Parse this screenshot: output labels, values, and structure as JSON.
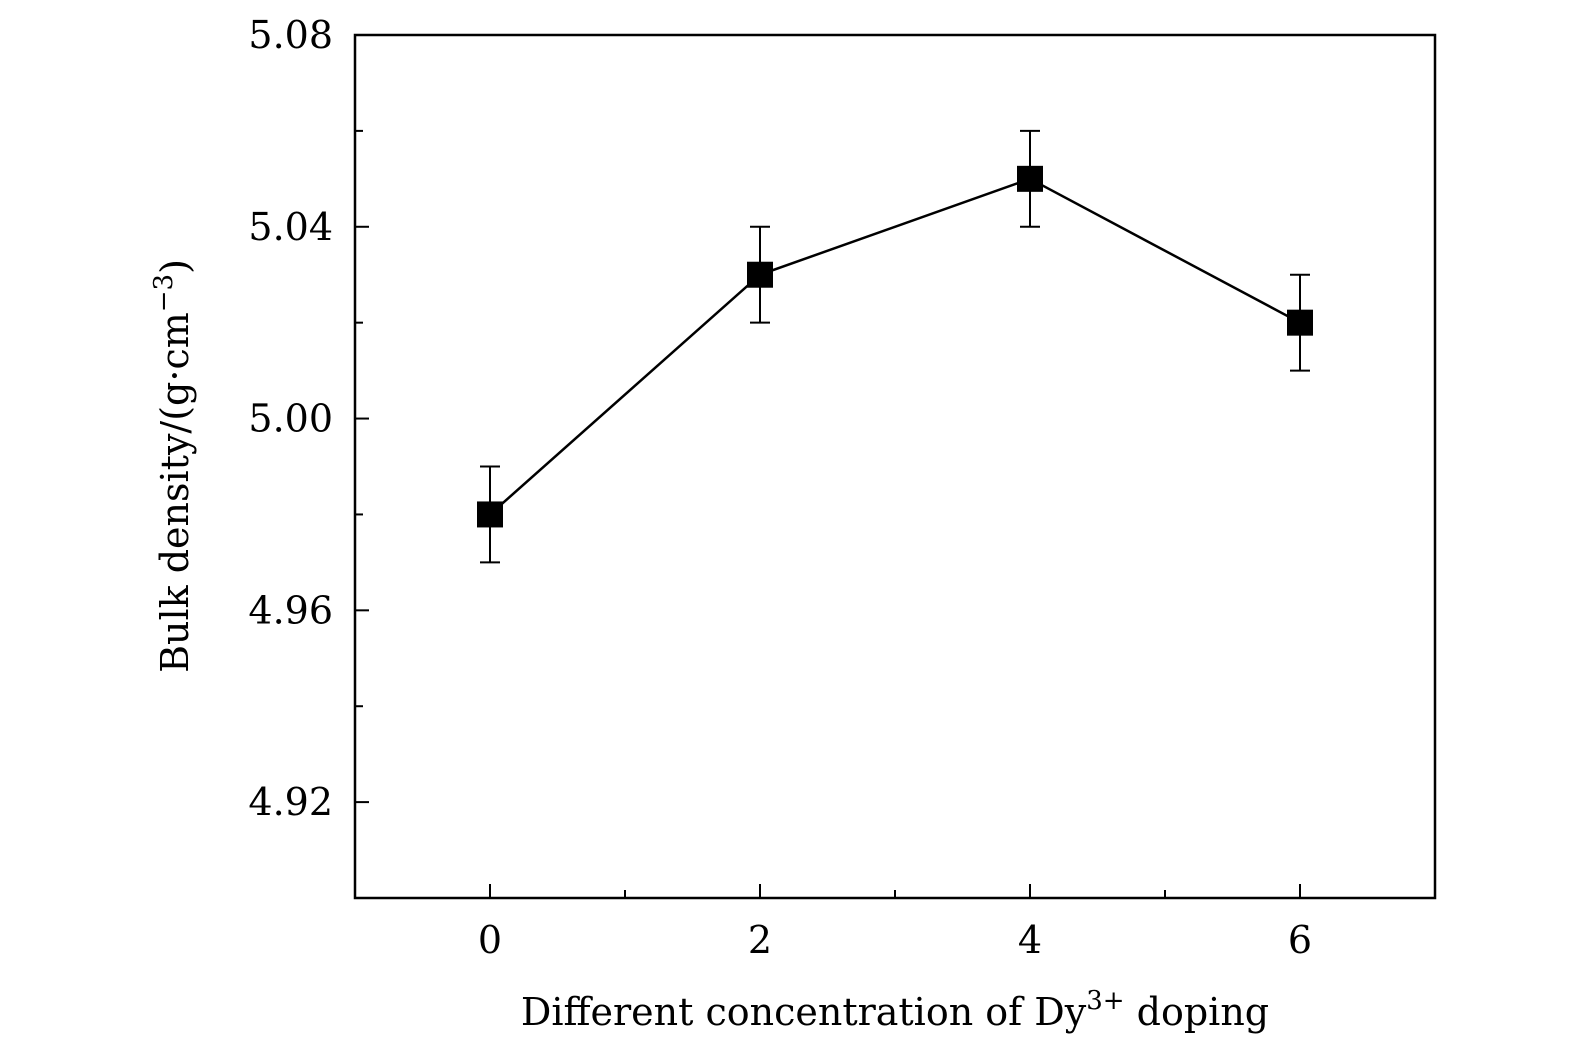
{
  "chart_data": {
    "type": "line",
    "title": "",
    "xlabel": {
      "text": "Different concentration of Dy",
      "sup": "3+",
      "suffix": " doping"
    },
    "ylabel": {
      "text": "Bulk density/(g·cm",
      "sup": "−3",
      "suffix": ")"
    },
    "xlim": [
      -1,
      7
    ],
    "ylim": [
      4.9,
      5.08
    ],
    "xticks": [
      0,
      2,
      4,
      6
    ],
    "xtick_labels": [
      "0",
      "2",
      "4",
      "6"
    ],
    "xminor": [
      1,
      3,
      5
    ],
    "yticks": [
      4.92,
      4.96,
      5.0,
      5.04,
      5.08
    ],
    "ytick_labels": [
      "4.92",
      "4.96",
      "5.00",
      "5.04",
      "5.08"
    ],
    "yminor": [
      4.94,
      4.98,
      5.02,
      5.06
    ],
    "grid": false,
    "legend": "none",
    "series": [
      {
        "x": [
          0,
          2,
          4,
          6
        ],
        "y": [
          4.98,
          5.03,
          5.05,
          5.02
        ],
        "yerr": [
          0.01,
          0.01,
          0.01,
          0.01
        ],
        "marker": "square",
        "color": "#000000"
      }
    ]
  }
}
